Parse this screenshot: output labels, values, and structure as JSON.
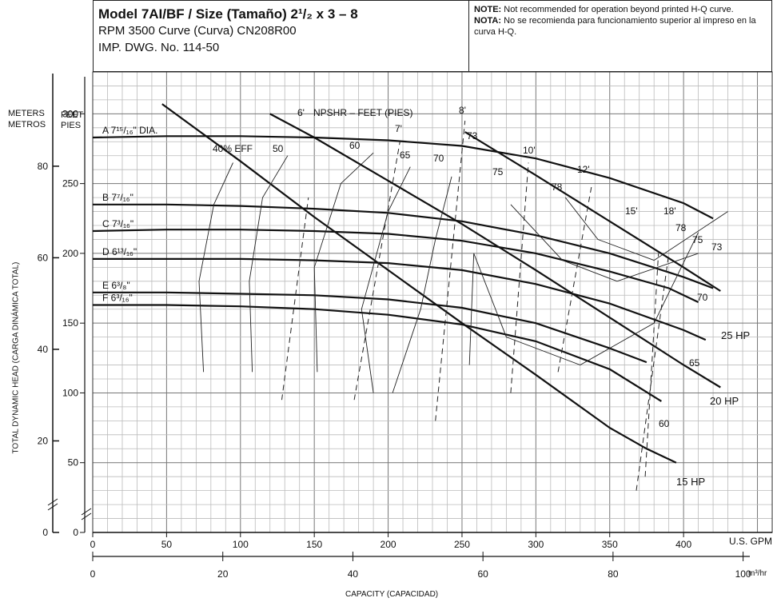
{
  "header": {
    "line1": "Model 7AI/BF / Size (Tamaño) 2¹/₂ x 3 – 8",
    "line2": "RPM 3500 Curve (Curva) CN208R00",
    "line3": "IMP. DWG. No. 114-50",
    "note_label": "NOTE:",
    "note_text": "Not recommended for operation beyond printed H-Q curve.",
    "nota_label": "NOTA:",
    "nota_text": "No se recomienda para funcionamiento superior al impreso en la curva H-Q."
  },
  "axis": {
    "meters_label": "METERS",
    "metros_label": "METROS",
    "feet_label": "FEET",
    "pies_label": "PIES",
    "y_title": "TOTAL DYNAMIC HEAD (CARGA DINÁMICA TOTAL)",
    "x_title": "CAPACITY (CAPACIDAD)",
    "gpm_unit": "U.S. GPM",
    "m3hr_unit": "m³/hr"
  },
  "chart_data": {
    "type": "line",
    "xlabel": "CAPACITY (CAPACIDAD)",
    "ylabel": "TOTAL DYNAMIC HEAD (CARGA DINÁMICA TOTAL)",
    "xlim": [
      0,
      460
    ],
    "ylim": [
      0,
      330
    ],
    "x_unit": "U.S. GPM",
    "y_unit": "FEET",
    "gpm_ticks": [
      "0",
      "50",
      "100",
      "150",
      "200",
      "250",
      "300",
      "350",
      "400"
    ],
    "m3hr_ticks": [
      "0",
      "20",
      "40",
      "60",
      "80",
      "100"
    ],
    "feet_ticks": [
      "0",
      "50",
      "100",
      "150",
      "200",
      "250",
      "300"
    ],
    "meter_ticks": [
      "0",
      "20",
      "40",
      "60",
      "80"
    ],
    "impeller_curves": [
      {
        "label": "A 7¹⁵/₁₆\" DIA.",
        "points": [
          [
            0,
            283
          ],
          [
            50,
            284
          ],
          [
            100,
            284
          ],
          [
            150,
            283
          ],
          [
            200,
            281
          ],
          [
            250,
            277
          ],
          [
            300,
            268
          ],
          [
            350,
            254
          ],
          [
            400,
            236
          ],
          [
            420,
            225
          ]
        ]
      },
      {
        "label": "B 7⁷/₁₆\"",
        "points": [
          [
            0,
            235
          ],
          [
            50,
            235
          ],
          [
            100,
            234
          ],
          [
            150,
            232
          ],
          [
            200,
            229
          ],
          [
            250,
            223
          ],
          [
            300,
            213
          ],
          [
            350,
            200
          ],
          [
            400,
            183
          ],
          [
            420,
            175
          ]
        ]
      },
      {
        "label": "C 7³/₁₆\"",
        "points": [
          [
            0,
            216
          ],
          [
            50,
            217
          ],
          [
            100,
            217
          ],
          [
            150,
            216
          ],
          [
            200,
            214
          ],
          [
            250,
            209
          ],
          [
            300,
            200
          ],
          [
            350,
            187
          ],
          [
            390,
            175
          ],
          [
            410,
            165
          ]
        ]
      },
      {
        "label": "D 6¹³/₁₆\"",
        "points": [
          [
            0,
            196
          ],
          [
            50,
            196
          ],
          [
            100,
            196
          ],
          [
            150,
            195
          ],
          [
            200,
            193
          ],
          [
            250,
            188
          ],
          [
            300,
            178
          ],
          [
            350,
            164
          ],
          [
            400,
            145
          ],
          [
            415,
            138
          ]
        ]
      },
      {
        "label": "E 6³/₈\"",
        "points": [
          [
            0,
            172
          ],
          [
            50,
            172
          ],
          [
            100,
            171
          ],
          [
            150,
            170
          ],
          [
            200,
            167
          ],
          [
            250,
            161
          ],
          [
            300,
            150
          ],
          [
            350,
            132
          ],
          [
            375,
            122
          ]
        ]
      },
      {
        "label": "F 6³/₁₆\"",
        "points": [
          [
            0,
            163
          ],
          [
            50,
            163
          ],
          [
            100,
            162
          ],
          [
            150,
            160
          ],
          [
            200,
            156
          ],
          [
            250,
            149
          ],
          [
            300,
            137
          ],
          [
            350,
            117
          ],
          [
            385,
            94
          ]
        ]
      }
    ],
    "efficiency_labels": [
      "40% EFF",
      "50",
      "60",
      "65",
      "70",
      "73",
      "75",
      "78",
      "78",
      "75",
      "73",
      "70",
      "65",
      "60"
    ],
    "npsh_title": "NPSHR – FEET (PIES)",
    "npsh_labels": [
      "6'",
      "7'",
      "8'",
      "10'",
      "12'",
      "15'",
      "18'"
    ],
    "hp_lines": [
      {
        "label": "25 HP",
        "points": [
          [
            252,
            287
          ],
          [
            300,
            256
          ],
          [
            350,
            223
          ],
          [
            400,
            190
          ],
          [
            425,
            173
          ]
        ]
      },
      {
        "label": "20 HP",
        "points": [
          [
            120,
            300
          ],
          [
            150,
            283
          ],
          [
            200,
            252
          ],
          [
            250,
            221
          ],
          [
            300,
            188
          ],
          [
            350,
            154
          ],
          [
            400,
            120
          ],
          [
            425,
            104
          ]
        ]
      },
      {
        "label": "15 HP",
        "points": [
          [
            47,
            307
          ],
          [
            100,
            266
          ],
          [
            150,
            226
          ],
          [
            200,
            188
          ],
          [
            250,
            150
          ],
          [
            300,
            113
          ],
          [
            350,
            75
          ],
          [
            375,
            60
          ],
          [
            395,
            50
          ]
        ]
      }
    ]
  }
}
